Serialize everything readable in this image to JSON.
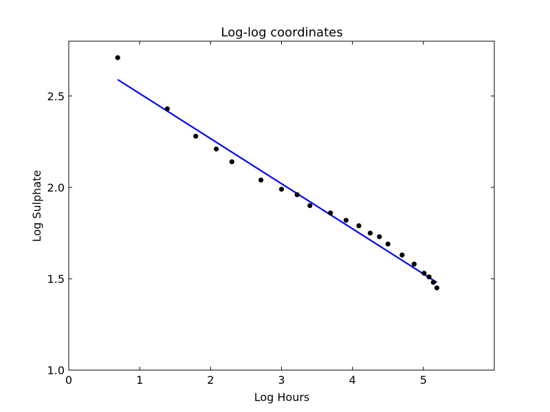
{
  "chart_data": {
    "type": "scatter",
    "title": "Log-log coordinates",
    "xlabel": "Log Hours",
    "ylabel": "Log Sulphate",
    "xlim": [
      0,
      6
    ],
    "ylim": [
      1.0,
      2.8
    ],
    "xticks": [
      "0",
      "1",
      "2",
      "3",
      "4",
      "5"
    ],
    "yticks": [
      "1.0",
      "1.5",
      "2.0",
      "2.5"
    ],
    "grid": false,
    "colors": {
      "points": "#000000",
      "fit_line": "#0000ff"
    },
    "series": [
      {
        "type": "scatter",
        "x": [
          0.69,
          1.39,
          1.79,
          2.08,
          2.3,
          2.71,
          3.0,
          3.22,
          3.4,
          3.69,
          3.91,
          4.09,
          4.25,
          4.38,
          4.5,
          4.7,
          4.87,
          5.01,
          5.08,
          5.14,
          5.19
        ],
        "y": [
          2.71,
          2.43,
          2.28,
          2.21,
          2.14,
          2.04,
          1.99,
          1.96,
          1.9,
          1.86,
          1.82,
          1.79,
          1.75,
          1.73,
          1.69,
          1.63,
          1.58,
          1.53,
          1.51,
          1.48,
          1.45
        ]
      },
      {
        "type": "line",
        "x": [
          0.69,
          5.19
        ],
        "y": [
          2.59,
          1.48
        ]
      }
    ]
  }
}
